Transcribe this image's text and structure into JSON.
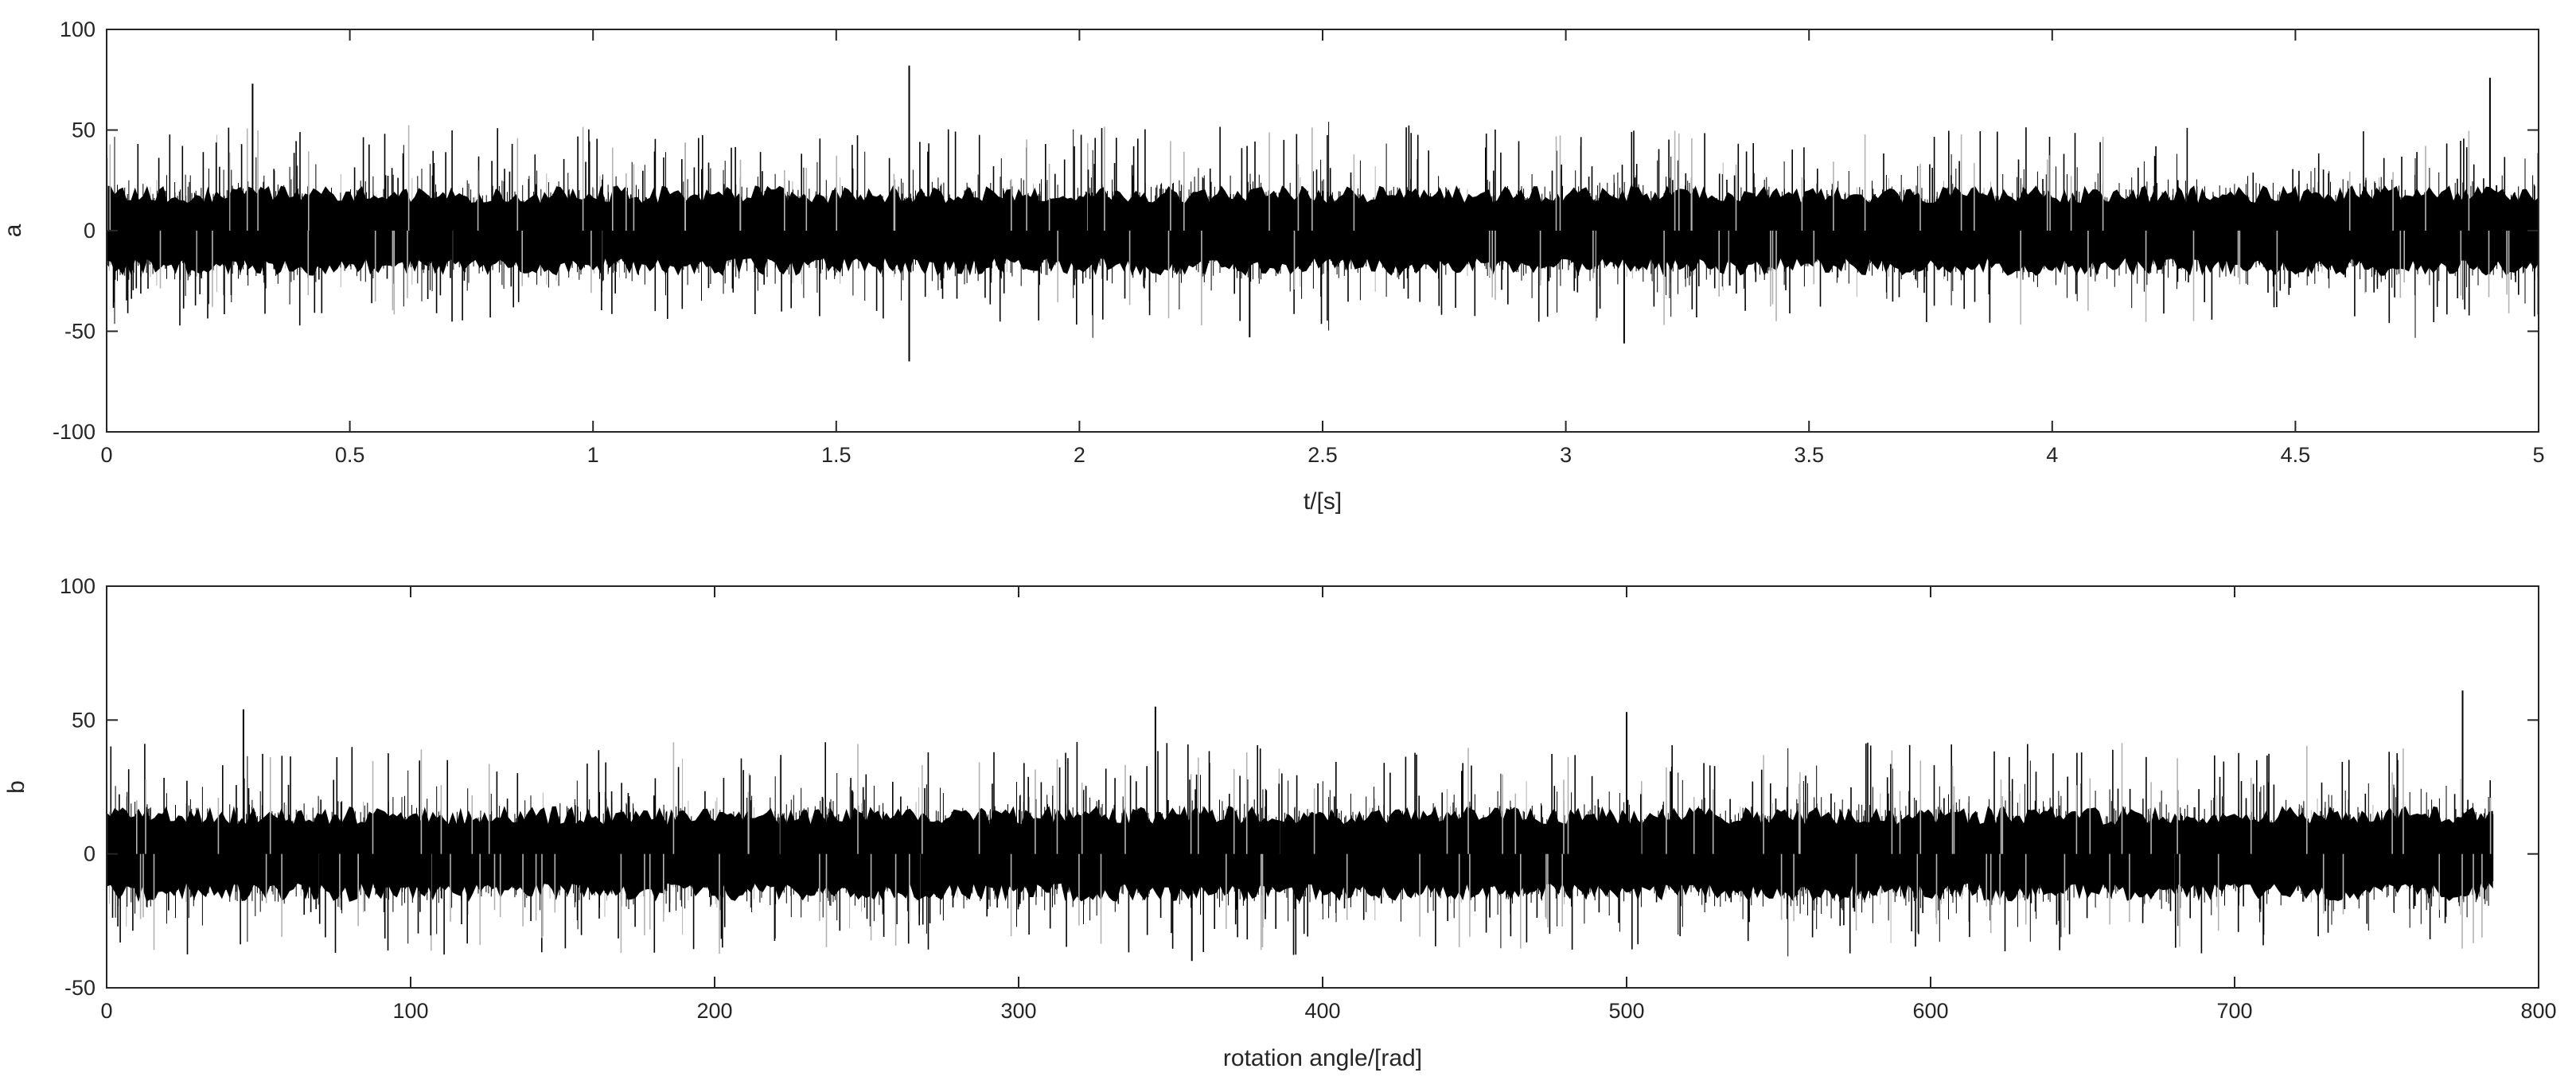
{
  "chart_data": [
    {
      "type": "line",
      "panel": "a",
      "xlabel": "t/[s]",
      "ylabel": "a",
      "xlim": [
        0,
        5
      ],
      "ylim": [
        -100,
        100
      ],
      "xticks": [
        0,
        0.5,
        1,
        1.5,
        2,
        2.5,
        3,
        3.5,
        4,
        4.5,
        5
      ],
      "xtick_labels": [
        "0",
        "0.5",
        "1",
        "1.5",
        "2",
        "2.5",
        "3",
        "3.5",
        "4",
        "4.5",
        "5"
      ],
      "yticks": [
        -100,
        -50,
        0,
        50,
        100
      ],
      "ytick_labels": [
        "-100",
        "-50",
        "0",
        "50",
        "100"
      ],
      "grid": false,
      "signal": {
        "description_of_values": "dense zero-mean vibration signal",
        "x_start": 0,
        "x_end": 5,
        "typical_amplitude": 25,
        "max_peak": 82,
        "min_peak": -65,
        "peaks": [
          {
            "x": 0.3,
            "y": 73
          },
          {
            "x": 1.65,
            "y": 82
          },
          {
            "x": 1.65,
            "y": -65
          },
          {
            "x": 2.35,
            "y": -53
          },
          {
            "x": 3.12,
            "y": -56
          },
          {
            "x": 4.9,
            "y": 76
          }
        ]
      },
      "colors": {
        "primary": "#000000",
        "secondary": "#b3b3b3"
      }
    },
    {
      "type": "line",
      "panel": "b",
      "xlabel": "rotation angle/[rad]",
      "ylabel": "b",
      "xlim": [
        0,
        800
      ],
      "ylim": [
        -50,
        100
      ],
      "xticks": [
        0,
        100,
        200,
        300,
        400,
        500,
        600,
        700,
        800
      ],
      "xtick_labels": [
        "0",
        "100",
        "200",
        "300",
        "400",
        "500",
        "600",
        "700",
        "800"
      ],
      "yticks": [
        -50,
        0,
        50,
        100
      ],
      "ytick_labels": [
        "-50",
        "0",
        "50",
        "100"
      ],
      "grid": false,
      "signal": {
        "description_of_values": "dense zero-mean vibration signal resampled in angle domain",
        "x_start": 0,
        "x_end": 785,
        "typical_amplitude": 20,
        "max_peak": 61,
        "min_peak": -40,
        "peaks": [
          {
            "x": 45,
            "y": 54
          },
          {
            "x": 345,
            "y": 55
          },
          {
            "x": 357,
            "y": -40
          },
          {
            "x": 500,
            "y": 53
          },
          {
            "x": 775,
            "y": 61
          }
        ]
      },
      "colors": {
        "primary": "#000000",
        "secondary": "#b3b3b3"
      }
    }
  ]
}
